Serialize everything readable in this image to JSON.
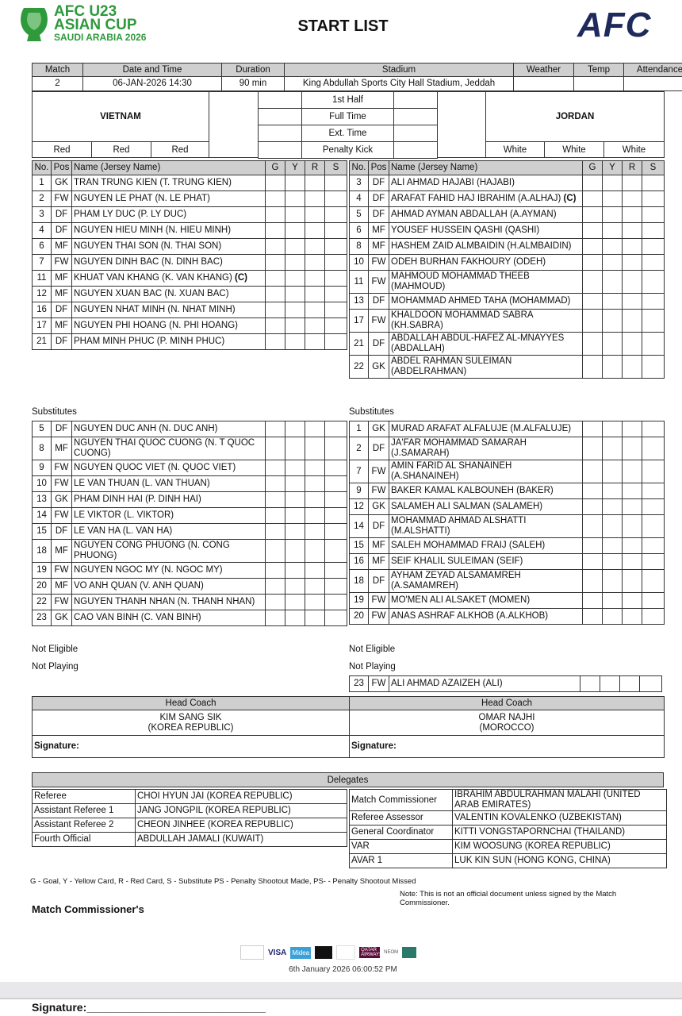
{
  "header": {
    "logo_text": [
      "AFC U23",
      "ASIAN CUP",
      "SAUDI ARABIA 2026"
    ],
    "title": "START LIST",
    "afc_logo_text": "AFC"
  },
  "match_info": {
    "headers": [
      "Match",
      "Date and Time",
      "Duration",
      "Stadium",
      "Weather",
      "Temp",
      "Attendance"
    ],
    "values": [
      "2",
      "06-JAN-2026 14:30",
      "90 min",
      "King Abdullah Sports City Hall Stadium, Jeddah",
      "",
      "",
      ""
    ]
  },
  "score": {
    "labels": [
      "1st Half",
      "Full Time",
      "Ext. Time",
      "Penalty Kick"
    ]
  },
  "table_headers": [
    "No.",
    "Pos",
    "Name (Jersey Name)",
    "G",
    "Y",
    "R",
    "S"
  ],
  "teams": [
    {
      "name": "VIETNAM",
      "colors": [
        "Red",
        "Red",
        "Red"
      ],
      "starters": [
        {
          "no": "1",
          "pos": "GK",
          "name": "TRAN TRUNG KIEN (T. TRUNG KIEN)"
        },
        {
          "no": "2",
          "pos": "FW",
          "name": "NGUYEN LE PHAT (N. LE PHAT)"
        },
        {
          "no": "3",
          "pos": "DF",
          "name": "PHAM LY DUC (P. LY DUC)"
        },
        {
          "no": "4",
          "pos": "DF",
          "name": "NGUYEN HIEU MINH (N. HIEU MINH)"
        },
        {
          "no": "6",
          "pos": "MF",
          "name": "NGUYEN THAI SON (N. THAI SON)"
        },
        {
          "no": "7",
          "pos": "FW",
          "name": "NGUYEN DINH BAC (N. DINH BAC)"
        },
        {
          "no": "11",
          "pos": "MF",
          "name": "KHUAT VAN KHANG (K. VAN KHANG)",
          "captain": "(C)"
        },
        {
          "no": "12",
          "pos": "MF",
          "name": "NGUYEN XUAN BAC (N. XUAN BAC)"
        },
        {
          "no": "16",
          "pos": "DF",
          "name": "NGUYEN NHAT MINH (N. NHAT MINH)"
        },
        {
          "no": "17",
          "pos": "MF",
          "name": "NGUYEN PHI HOANG (N. PHI HOANG)"
        },
        {
          "no": "21",
          "pos": "DF",
          "name": "PHAM MINH PHUC (P. MINH PHUC)"
        }
      ],
      "substitutes_label": "Substitutes",
      "substitutes": [
        {
          "no": "5",
          "pos": "DF",
          "name": "NGUYEN DUC ANH (N. DUC ANH)"
        },
        {
          "no": "8",
          "pos": "MF",
          "name": "NGUYEN THAI QUOC CUONG (N. T QUOC CUONG)"
        },
        {
          "no": "9",
          "pos": "FW",
          "name": "NGUYEN QUOC VIET (N. QUOC VIET)"
        },
        {
          "no": "10",
          "pos": "FW",
          "name": "LE VAN THUAN (L. VAN THUAN)"
        },
        {
          "no": "13",
          "pos": "GK",
          "name": "PHAM DINH HAI (P. DINH HAI)"
        },
        {
          "no": "14",
          "pos": "FW",
          "name": "LE VIKTOR (L. VIKTOR)"
        },
        {
          "no": "15",
          "pos": "DF",
          "name": "LE VAN HA (L. VAN HA)"
        },
        {
          "no": "18",
          "pos": "MF",
          "name": "NGUYEN CONG PHUONG (N. CONG PHUONG)"
        },
        {
          "no": "19",
          "pos": "FW",
          "name": "NGUYEN NGOC MY (N. NGOC MY)"
        },
        {
          "no": "20",
          "pos": "MF",
          "name": "VO ANH QUAN (V. ANH QUAN)"
        },
        {
          "no": "22",
          "pos": "FW",
          "name": "NGUYEN THANH NHAN (N. THANH NHAN)"
        },
        {
          "no": "23",
          "pos": "GK",
          "name": "CAO VAN BINH (C. VAN BINH)"
        }
      ],
      "not_eligible_label": "Not Eligible",
      "not_playing_label": "Not Playing",
      "not_playing": [],
      "coach_label": "Head Coach",
      "coach": "KIM SANG SIK",
      "coach_country": "(KOREA REPUBLIC)",
      "signature_label": "Signature:"
    },
    {
      "name": "JORDAN",
      "colors": [
        "White",
        "White",
        "White"
      ],
      "starters": [
        {
          "no": "3",
          "pos": "DF",
          "name": "ALI AHMAD HAJABI (HAJABI)"
        },
        {
          "no": "4",
          "pos": "DF",
          "name": "ARAFAT FAHID HAJ IBRAHIM (A.ALHAJ)",
          "captain": "(C)"
        },
        {
          "no": "5",
          "pos": "DF",
          "name": "AHMAD AYMAN ABDALLAH (A.AYMAN)"
        },
        {
          "no": "6",
          "pos": "MF",
          "name": "YOUSEF HUSSEIN QASHI (QASHI)"
        },
        {
          "no": "8",
          "pos": "MF",
          "name": "HASHEM ZAID ALMBAIDIN (H.ALMBAIDIN)"
        },
        {
          "no": "10",
          "pos": "FW",
          "name": "ODEH BURHAN FAKHOURY (ODEH)"
        },
        {
          "no": "11",
          "pos": "FW",
          "name": "MAHMOUD MOHAMMAD THEEB (MAHMOUD)"
        },
        {
          "no": "13",
          "pos": "DF",
          "name": "MOHAMMAD AHMED TAHA (MOHAMMAD)"
        },
        {
          "no": "17",
          "pos": "FW",
          "name": "KHALDOON MOHAMMAD SABRA (KH.SABRA)"
        },
        {
          "no": "21",
          "pos": "DF",
          "name": "ABDALLAH ABDUL-HAFEZ AL-MNAYYES (ABDALLAH)"
        },
        {
          "no": "22",
          "pos": "GK",
          "name": "ABDEL RAHMAN SULEIMAN (ABDELRAHMAN)"
        }
      ],
      "substitutes_label": "Substitutes",
      "substitutes": [
        {
          "no": "1",
          "pos": "GK",
          "name": "MURAD ARAFAT ALFALUJE (M.ALFALUJE)"
        },
        {
          "no": "2",
          "pos": "DF",
          "name": "JA'FAR MOHAMMAD SAMARAH (J.SAMARAH)"
        },
        {
          "no": "7",
          "pos": "FW",
          "name": "AMIN FARID AL SHANAINEH (A.SHANAINEH)"
        },
        {
          "no": "9",
          "pos": "FW",
          "name": "BAKER KAMAL KALBOUNEH (BAKER)"
        },
        {
          "no": "12",
          "pos": "GK",
          "name": "SALAMEH ALI SALMAN (SALAMEH)"
        },
        {
          "no": "14",
          "pos": "DF",
          "name": "MOHAMMAD AHMAD ALSHATTI (M.ALSHATTI)"
        },
        {
          "no": "15",
          "pos": "MF",
          "name": "SALEH MOHAMMAD FRAIJ (SALEH)"
        },
        {
          "no": "16",
          "pos": "MF",
          "name": "SEIF KHALIL SULEIMAN (SEIF)"
        },
        {
          "no": "18",
          "pos": "DF",
          "name": "AYHAM ZEYAD ALSAMAMREH (A.SAMAMREH)"
        },
        {
          "no": "19",
          "pos": "FW",
          "name": "MO'MEN ALI ALSAKET (MOMEN)"
        },
        {
          "no": "20",
          "pos": "FW",
          "name": "ANAS ASHRAF ALKHOB (A.ALKHOB)"
        }
      ],
      "not_eligible_label": "Not Eligible",
      "not_playing_label": "Not Playing",
      "not_playing": [
        {
          "no": "23",
          "pos": "FW",
          "name": "ALI AHMAD AZAIZEH (ALI)"
        }
      ],
      "coach_label": "Head Coach",
      "coach": "OMAR NAJHI",
      "coach_country": "(MOROCCO)",
      "signature_label": "Signature:"
    }
  ],
  "delegates": {
    "title": "Delegates",
    "left": [
      {
        "role": "Referee",
        "name": "CHOI HYUN JAI (KOREA REPUBLIC)"
      },
      {
        "role": "Assistant Referee 1",
        "name": "JANG JONGPIL (KOREA REPUBLIC)"
      },
      {
        "role": "Assistant Referee 2",
        "name": "CHEON JINHEE (KOREA REPUBLIC)"
      },
      {
        "role": "Fourth Official",
        "name": "ABDULLAH JAMALI (KUWAIT)"
      }
    ],
    "right": [
      {
        "role": "Match Commissioner",
        "name": "IBRAHIM ABDULRAHMAN MALAHI (UNITED ARAB EMIRATES)"
      },
      {
        "role": "Referee Assessor",
        "name": "VALENTIN KOVALENKO (UZBEKISTAN)"
      },
      {
        "role": "General Coordinator",
        "name": "KITTI VONGSTAPORNCHAI (THAILAND)"
      },
      {
        "role": "VAR",
        "name": "KIM WOOSUNG (KOREA REPUBLIC)"
      },
      {
        "role": "AVAR 1",
        "name": "LUK KIN SUN (HONG KONG, CHINA)"
      }
    ]
  },
  "footer": {
    "legend": "G - Goal, Y - Yellow Card, R - Red Card, S - Substitute PS - Penalty Shootout Made, PS- - Penalty Shootout Missed",
    "note": "Note: This is not an official document unless signed by the Match Commissioner.",
    "commissioner_label": "Match Commissioner's",
    "sponsors": [
      "VISA",
      "Midea",
      "QATAR AIRWAYS",
      "NEOM"
    ],
    "timestamp": "6th January 2026 06:00:52 PM",
    "signature": "Signature:_____________________________"
  },
  "colors": {
    "header_gray": "#cfcfcf",
    "logo_green": "#2e9a3c",
    "afc_navy": "#1f2a5c"
  }
}
